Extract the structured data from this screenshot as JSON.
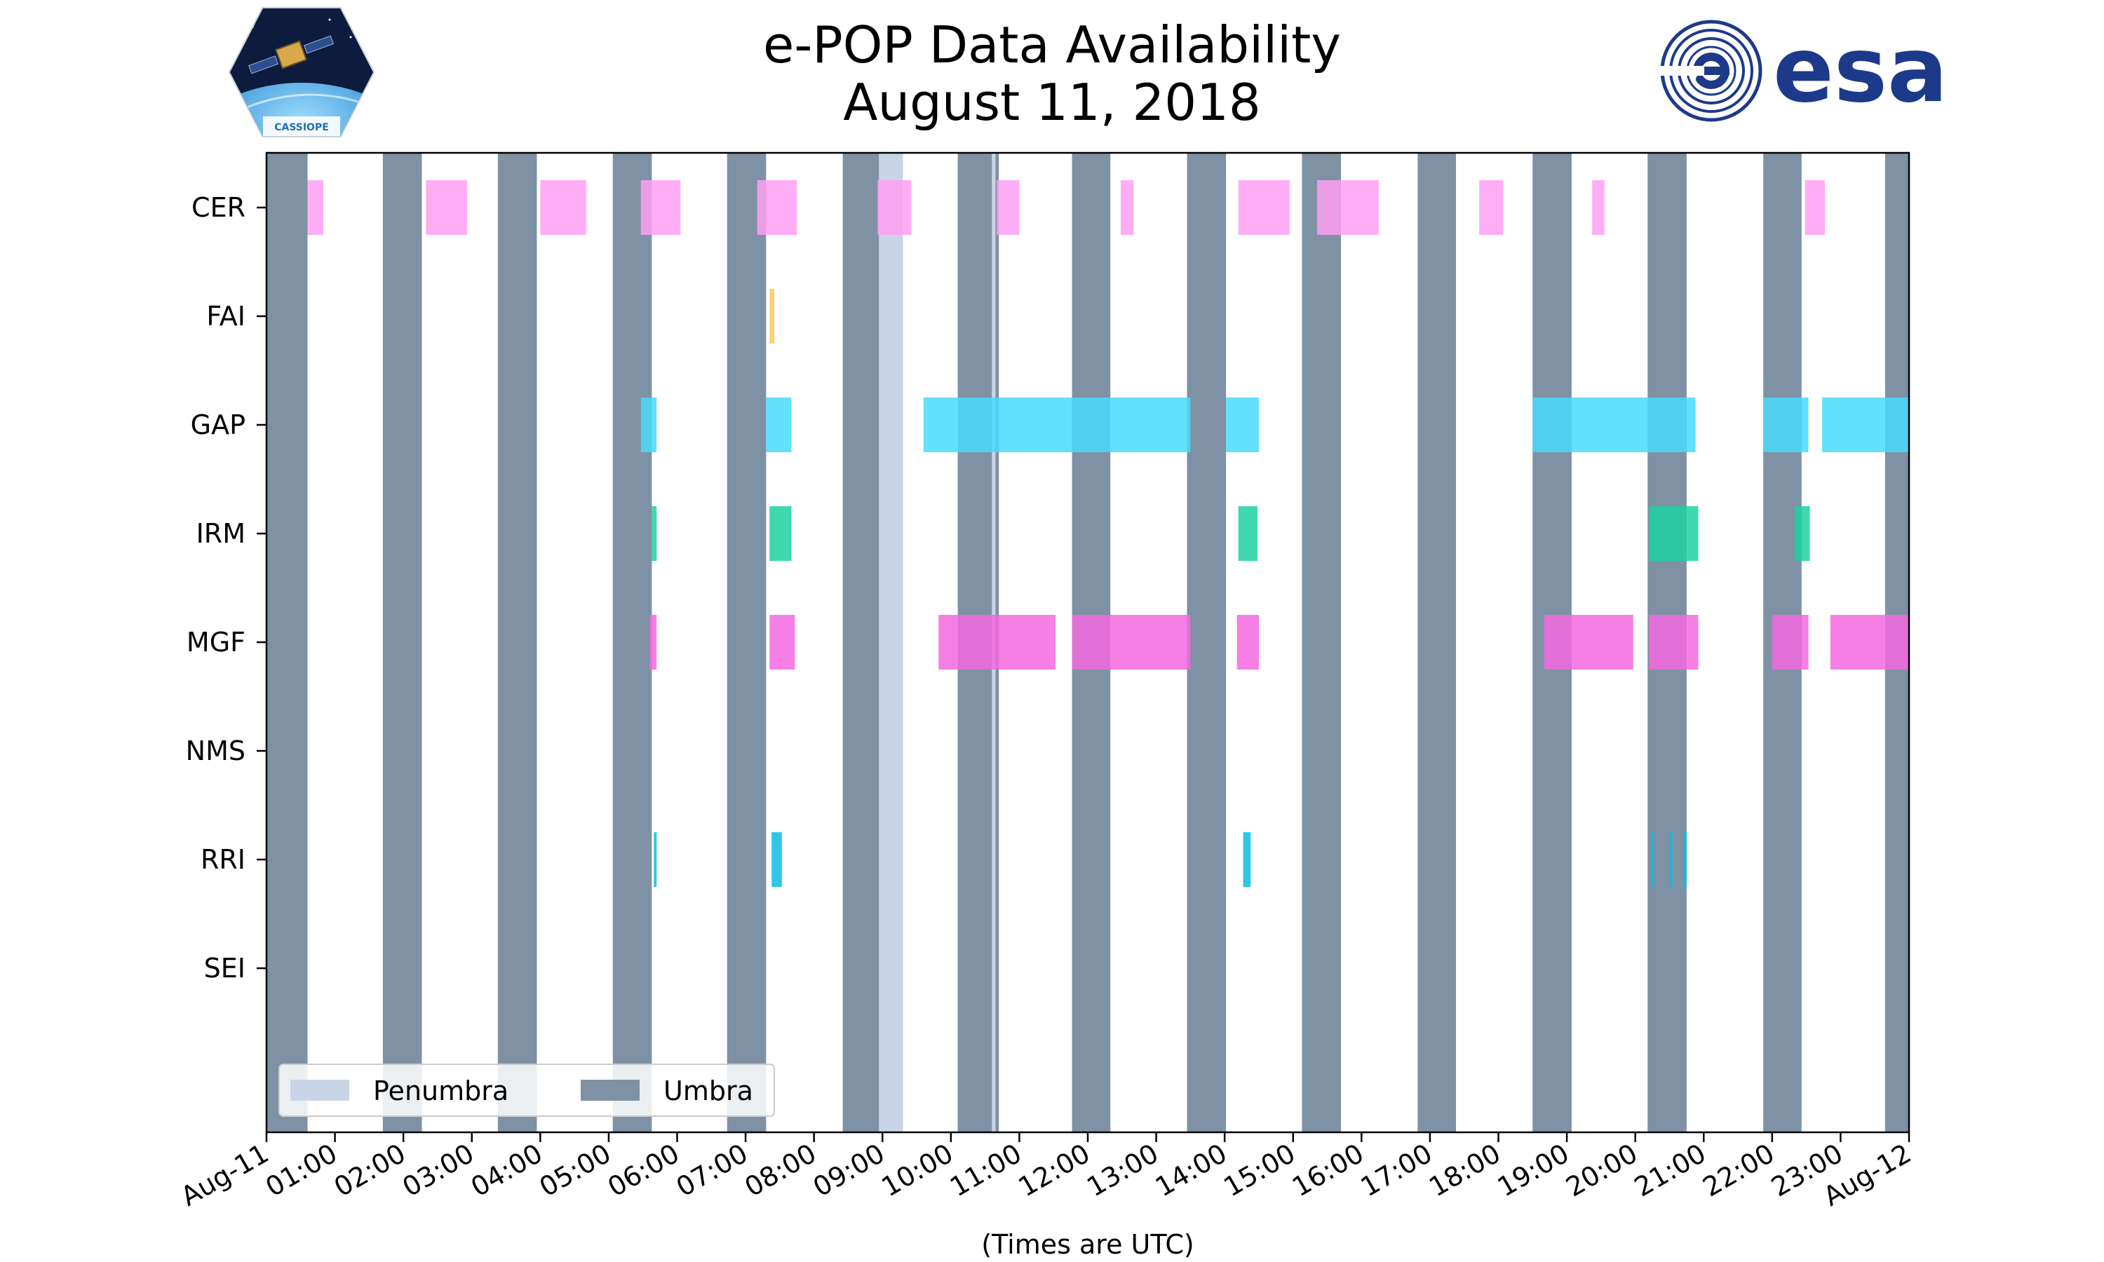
{
  "chart_data": {
    "type": "timeline",
    "title": "e-POP Data Availability",
    "subtitle": "August 11, 2018",
    "xlabel": "(Times are UTC)",
    "x_unit": "hours since 2018-08-11 00:00 UTC",
    "xlim": [
      0,
      24
    ],
    "x_ticks": [
      {
        "value": 0,
        "label": "Aug-11"
      },
      {
        "value": 1,
        "label": "01:00"
      },
      {
        "value": 2,
        "label": "02:00"
      },
      {
        "value": 3,
        "label": "03:00"
      },
      {
        "value": 4,
        "label": "04:00"
      },
      {
        "value": 5,
        "label": "05:00"
      },
      {
        "value": 6,
        "label": "06:00"
      },
      {
        "value": 7,
        "label": "07:00"
      },
      {
        "value": 8,
        "label": "08:00"
      },
      {
        "value": 9,
        "label": "09:00"
      },
      {
        "value": 10,
        "label": "10:00"
      },
      {
        "value": 11,
        "label": "11:00"
      },
      {
        "value": 12,
        "label": "12:00"
      },
      {
        "value": 13,
        "label": "13:00"
      },
      {
        "value": 14,
        "label": "14:00"
      },
      {
        "value": 15,
        "label": "15:00"
      },
      {
        "value": 16,
        "label": "16:00"
      },
      {
        "value": 17,
        "label": "17:00"
      },
      {
        "value": 18,
        "label": "18:00"
      },
      {
        "value": 19,
        "label": "19:00"
      },
      {
        "value": 20,
        "label": "20:00"
      },
      {
        "value": 21,
        "label": "21:00"
      },
      {
        "value": 22,
        "label": "22:00"
      },
      {
        "value": 23,
        "label": "23:00"
      },
      {
        "value": 24,
        "label": "Aug-12"
      }
    ],
    "instruments": [
      "CER",
      "FAI",
      "GAP",
      "IRM",
      "MGF",
      "NMS",
      "RRI",
      "SEI"
    ],
    "colors": {
      "umbra": "#7f91a4",
      "penumbra": "#c9d5e6",
      "CER": "#ff9ff3",
      "FAI": "#feca57",
      "GAP": "#48dbfb",
      "IRM": "#1dd1a1",
      "MGF": "#f368e0",
      "NMS": "#ff6b6b",
      "RRI": "#0abde3",
      "SEI": "#5f27cd"
    },
    "umbra": [
      [
        0.0,
        0.6
      ],
      [
        1.7,
        2.27
      ],
      [
        3.38,
        3.95
      ],
      [
        5.06,
        5.63
      ],
      [
        6.73,
        7.3
      ],
      [
        8.42,
        8.95
      ],
      [
        10.1,
        10.6
      ],
      [
        10.65,
        10.7
      ],
      [
        11.77,
        12.33
      ],
      [
        13.45,
        14.02
      ],
      [
        15.13,
        15.7
      ],
      [
        16.82,
        17.38
      ],
      [
        18.5,
        19.07
      ],
      [
        20.18,
        20.75
      ],
      [
        21.87,
        22.43
      ],
      [
        23.65,
        24.0
      ]
    ],
    "penumbra": [
      [
        8.95,
        9.3
      ],
      [
        10.6,
        10.65
      ]
    ],
    "availability": {
      "CER": [
        [
          0.6,
          0.83
        ],
        [
          2.33,
          2.93
        ],
        [
          4.0,
          4.67
        ],
        [
          5.47,
          6.05
        ],
        [
          7.17,
          7.75
        ],
        [
          8.93,
          9.42
        ],
        [
          10.67,
          11.0
        ],
        [
          12.48,
          12.67
        ],
        [
          14.2,
          14.95
        ],
        [
          15.35,
          16.25
        ],
        [
          17.72,
          18.07
        ],
        [
          19.37,
          19.55
        ],
        [
          22.48,
          22.77
        ]
      ],
      "FAI": [
        [
          7.35,
          7.42
        ]
      ],
      "GAP": [
        [
          5.47,
          5.7
        ],
        [
          7.3,
          7.67
        ],
        [
          9.6,
          13.5
        ],
        [
          14.02,
          14.5
        ],
        [
          18.5,
          20.88
        ],
        [
          21.87,
          22.53
        ],
        [
          22.73,
          24.0
        ]
      ],
      "IRM": [
        [
          5.63,
          5.7
        ],
        [
          7.35,
          7.67
        ],
        [
          14.2,
          14.48
        ],
        [
          20.2,
          20.92
        ],
        [
          22.33,
          22.55
        ]
      ],
      "MGF": [
        [
          5.6,
          5.7
        ],
        [
          7.35,
          7.72
        ],
        [
          9.82,
          11.53
        ],
        [
          11.77,
          13.5
        ],
        [
          14.18,
          14.5
        ],
        [
          18.67,
          19.97
        ],
        [
          20.2,
          20.92
        ],
        [
          22.0,
          22.53
        ],
        [
          22.85,
          24.0
        ]
      ],
      "NMS": [],
      "RRI": [
        [
          5.66,
          5.7
        ],
        [
          7.38,
          7.53
        ],
        [
          14.27,
          14.38
        ],
        [
          20.23,
          20.27
        ],
        [
          20.5,
          20.54
        ],
        [
          20.7,
          20.75
        ]
      ],
      "SEI": []
    },
    "legend": {
      "placement": "lower-left",
      "entries": [
        {
          "label": "Penumbra",
          "color_key": "penumbra"
        },
        {
          "label": "Umbra",
          "color_key": "umbra"
        }
      ]
    }
  },
  "logos": {
    "cassiope_text": "CASSIOPE",
    "esa_text": "esa",
    "colors": {
      "esa_blue": "#1d3a8a",
      "space": "#0d1b3e",
      "earth": "#2a8bd0"
    }
  }
}
